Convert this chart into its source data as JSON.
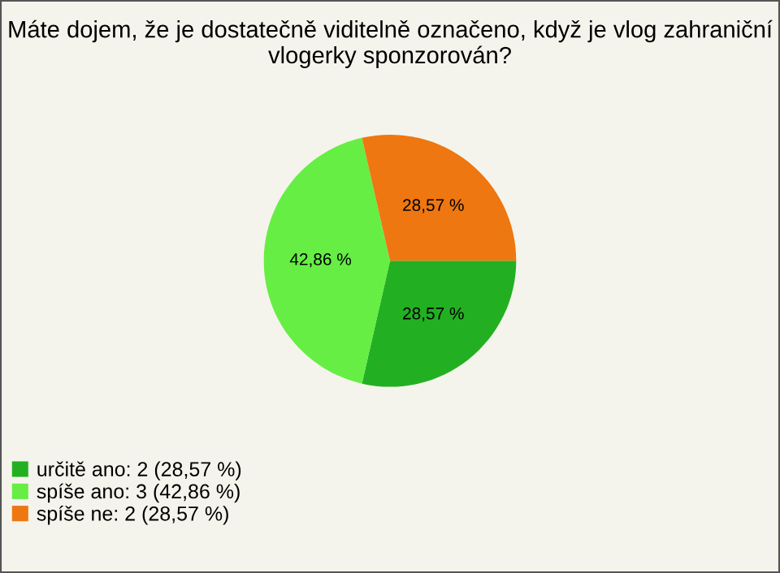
{
  "chart_data": {
    "type": "pie",
    "title": "Máte dojem, že je dostatečně viditelně označeno, když je vlog zahraniční vlogerky sponzorován?",
    "categories": [
      "určitě ano: 2 (28,57 %)",
      "spíše ano: 3 (42,86 %)",
      "spíše ne: 2 (28,57 %)"
    ],
    "values": [
      28.57,
      42.86,
      28.57
    ],
    "value_labels": [
      "28,57 %",
      "42,86 %",
      "28,57 %"
    ],
    "colors": [
      "#22b022",
      "#66ee44",
      "#ee7711"
    ],
    "legend": "bottom left"
  }
}
